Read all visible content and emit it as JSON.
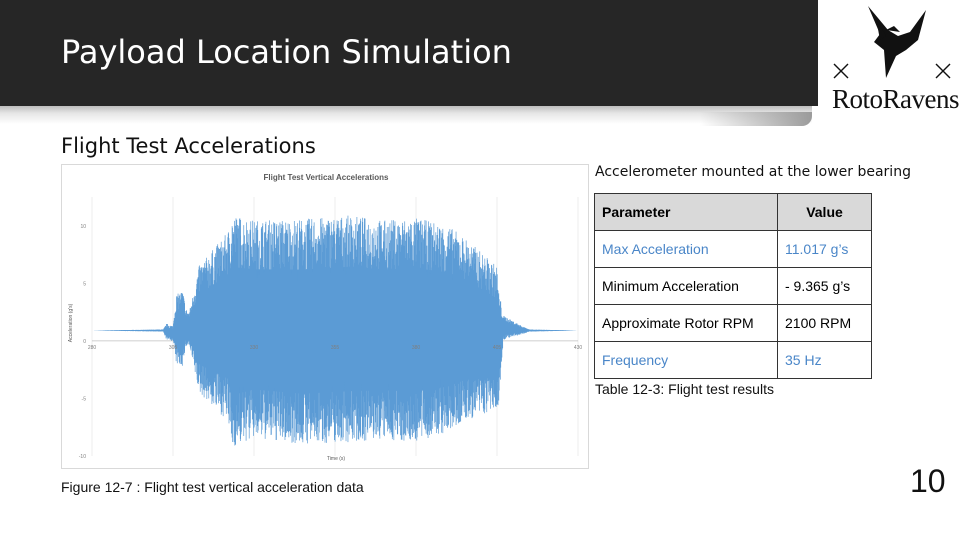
{
  "slide": {
    "title": "Payload Location Simulation",
    "subtitle": "Flight Test Accelerations",
    "page_number": "10",
    "logo": {
      "text": "RotoRavens",
      "icon": "raven-drone-logo"
    }
  },
  "figure": {
    "caption": "Figure 12-7 :  Flight test vertical acceleration data"
  },
  "table": {
    "note": "Accelerometer mounted at the lower bearing",
    "headers": [
      "Parameter",
      "Value"
    ],
    "rows": [
      {
        "parameter": "Max Acceleration",
        "value": "11.017 g’s",
        "highlight": true
      },
      {
        "parameter": "Minimum Acceleration",
        "value": "- 9.365 g’s",
        "highlight": false
      },
      {
        "parameter": "Approximate Rotor RPM",
        "value": "2100 RPM",
        "highlight": false
      },
      {
        "parameter": "Frequency",
        "value": "35 Hz",
        "highlight": true
      }
    ],
    "caption": "Table 12-3: Flight test results"
  },
  "colors": {
    "header_bar": "#262626",
    "accent_text": "#4a86c8",
    "series": "#5b9bd5"
  },
  "chart_data": {
    "type": "area",
    "title": "Flight Test Vertical Accelerations",
    "xlabel": "Time (s)",
    "ylabel": "Acceleration (g's)",
    "xlim": [
      280,
      430
    ],
    "ylim": [
      -10,
      12
    ],
    "x_ticks": [
      "280",
      "305",
      "330",
      "355",
      "380",
      "405",
      "430"
    ],
    "y_ticks": [
      "10",
      "5",
      "0",
      "-5",
      "-10"
    ],
    "grid": true,
    "series": [
      {
        "values_envelope": {
          "x": [
            280,
            302,
            303,
            305,
            306,
            308,
            309,
            310,
            313,
            322,
            323,
            330,
            345,
            360,
            370,
            380,
            390,
            395,
            405,
            405.5,
            407,
            412,
            415,
            430
          ],
          "upper": [
            0.9,
            1.0,
            1.5,
            1.3,
            4.0,
            4.4,
            2.8,
            2.5,
            6.5,
            9.5,
            11.0,
            10.5,
            10.6,
            10.9,
            10.5,
            10.7,
            10.0,
            9.0,
            6.5,
            4.5,
            2.2,
            1.4,
            1.0,
            0.9
          ],
          "lower": [
            0.9,
            0.8,
            0.1,
            0.0,
            -2.0,
            -2.2,
            -0.5,
            -0.4,
            -4.5,
            -7.0,
            -9.3,
            -8.5,
            -9.0,
            -8.8,
            -8.6,
            -8.8,
            -8.0,
            -7.0,
            -6.0,
            -5.5,
            0.1,
            0.5,
            0.8,
            0.9
          ]
        }
      }
    ]
  }
}
